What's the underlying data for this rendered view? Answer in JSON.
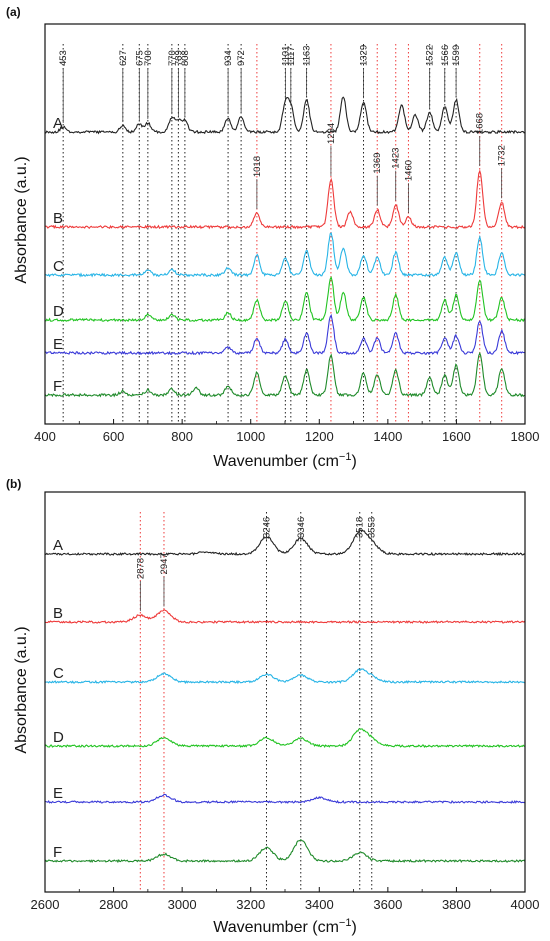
{
  "chart_data": [
    {
      "panel": "(a)",
      "type": "line",
      "xlabel": "Wavenumber (cm−1)",
      "ylabel": "Absorbance (a.u.)",
      "xlim": [
        400,
        1800
      ],
      "x_ticks": [
        "400",
        "600",
        "800",
        "1000",
        "1200",
        "1400",
        "1600",
        "1800"
      ],
      "series": [
        {
          "name": "A",
          "color": "#222222",
          "peaks": [
            [
              453,
              0.1
            ],
            [
              627,
              0.12
            ],
            [
              675,
              0.16
            ],
            [
              700,
              0.18
            ],
            [
              770,
              0.28
            ],
            [
              789,
              0.22
            ],
            [
              808,
              0.22
            ],
            [
              934,
              0.28
            ],
            [
              972,
              0.3
            ],
            [
              1101,
              0.55
            ],
            [
              1117,
              0.5
            ],
            [
              1163,
              0.65
            ],
            [
              1270,
              0.7
            ],
            [
              1329,
              0.6
            ],
            [
              1440,
              0.55
            ],
            [
              1480,
              0.35
            ],
            [
              1522,
              0.4
            ],
            [
              1566,
              0.52
            ],
            [
              1599,
              0.65
            ]
          ]
        },
        {
          "name": "B",
          "color": "#ee3a3a",
          "peaks": [
            [
              1018,
              0.28
            ],
            [
              1234,
              0.95
            ],
            [
              1290,
              0.3
            ],
            [
              1369,
              0.35
            ],
            [
              1423,
              0.45
            ],
            [
              1460,
              0.2
            ],
            [
              1668,
              1.15
            ],
            [
              1732,
              0.5
            ]
          ]
        },
        {
          "name": "C",
          "color": "#27b4e6",
          "peaks": [
            [
              700,
              0.1
            ],
            [
              770,
              0.12
            ],
            [
              934,
              0.15
            ],
            [
              1018,
              0.4
            ],
            [
              1101,
              0.35
            ],
            [
              1163,
              0.5
            ],
            [
              1234,
              0.85
            ],
            [
              1270,
              0.55
            ],
            [
              1329,
              0.4
            ],
            [
              1369,
              0.35
            ],
            [
              1423,
              0.45
            ],
            [
              1566,
              0.35
            ],
            [
              1599,
              0.45
            ],
            [
              1668,
              0.75
            ],
            [
              1732,
              0.45
            ]
          ]
        },
        {
          "name": "D",
          "color": "#22c322",
          "peaks": [
            [
              700,
              0.1
            ],
            [
              770,
              0.12
            ],
            [
              934,
              0.15
            ],
            [
              1018,
              0.4
            ],
            [
              1101,
              0.4
            ],
            [
              1163,
              0.55
            ],
            [
              1234,
              0.85
            ],
            [
              1270,
              0.55
            ],
            [
              1329,
              0.45
            ],
            [
              1423,
              0.5
            ],
            [
              1566,
              0.4
            ],
            [
              1599,
              0.5
            ],
            [
              1668,
              0.8
            ],
            [
              1732,
              0.45
            ]
          ]
        },
        {
          "name": "E",
          "color": "#3a3ad8",
          "peaks": [
            [
              934,
              0.12
            ],
            [
              1018,
              0.3
            ],
            [
              1101,
              0.28
            ],
            [
              1163,
              0.4
            ],
            [
              1234,
              0.75
            ],
            [
              1329,
              0.3
            ],
            [
              1369,
              0.3
            ],
            [
              1423,
              0.4
            ],
            [
              1566,
              0.3
            ],
            [
              1599,
              0.35
            ],
            [
              1668,
              0.65
            ],
            [
              1732,
              0.45
            ]
          ]
        },
        {
          "name": "F",
          "color": "#1f8a2a",
          "peaks": [
            [
              627,
              0.08
            ],
            [
              700,
              0.1
            ],
            [
              770,
              0.12
            ],
            [
              840,
              0.15
            ],
            [
              934,
              0.18
            ],
            [
              1018,
              0.45
            ],
            [
              1101,
              0.4
            ],
            [
              1163,
              0.5
            ],
            [
              1234,
              0.8
            ],
            [
              1329,
              0.45
            ],
            [
              1369,
              0.4
            ],
            [
              1423,
              0.5
            ],
            [
              1522,
              0.35
            ],
            [
              1566,
              0.4
            ],
            [
              1599,
              0.6
            ],
            [
              1668,
              0.85
            ],
            [
              1732,
              0.55
            ]
          ]
        }
      ],
      "annotations": [
        {
          "label": "453",
          "x": 453,
          "series": "A"
        },
        {
          "label": "627",
          "x": 627,
          "series": "A"
        },
        {
          "label": "675",
          "x": 675,
          "series": "A"
        },
        {
          "label": "700",
          "x": 700,
          "series": "A"
        },
        {
          "label": "770",
          "x": 770,
          "series": "A"
        },
        {
          "label": "789",
          "x": 789,
          "series": "A"
        },
        {
          "label": "808",
          "x": 808,
          "series": "A"
        },
        {
          "label": "934",
          "x": 934,
          "series": "A"
        },
        {
          "label": "972",
          "x": 972,
          "series": "A"
        },
        {
          "label": "1101",
          "x": 1101,
          "series": "A"
        },
        {
          "label": "1117",
          "x": 1117,
          "series": "A"
        },
        {
          "label": "1163",
          "x": 1163,
          "series": "A"
        },
        {
          "label": "1329",
          "x": 1329,
          "series": "A"
        },
        {
          "label": "1522",
          "x": 1522,
          "series": "A"
        },
        {
          "label": "1566",
          "x": 1566,
          "series": "A"
        },
        {
          "label": "1599",
          "x": 1599,
          "series": "A"
        },
        {
          "label": "1018",
          "x": 1018,
          "series": "B"
        },
        {
          "label": "1234",
          "x": 1234,
          "series": "B"
        },
        {
          "label": "1369",
          "x": 1369,
          "series": "B"
        },
        {
          "label": "1423",
          "x": 1423,
          "series": "B"
        },
        {
          "label": "1460",
          "x": 1460,
          "series": "B"
        },
        {
          "label": "1668",
          "x": 1668,
          "series": "B"
        },
        {
          "label": "1732",
          "x": 1732,
          "series": "B"
        }
      ],
      "dotted_lines": [
        {
          "x": 453,
          "color": "#222222"
        },
        {
          "x": 627,
          "color": "#222222"
        },
        {
          "x": 675,
          "color": "#222222"
        },
        {
          "x": 700,
          "color": "#222222"
        },
        {
          "x": 770,
          "color": "#222222"
        },
        {
          "x": 789,
          "color": "#222222"
        },
        {
          "x": 808,
          "color": "#222222"
        },
        {
          "x": 934,
          "color": "#222222"
        },
        {
          "x": 972,
          "color": "#222222"
        },
        {
          "x": 1018,
          "color": "#ee3a3a"
        },
        {
          "x": 1101,
          "color": "#222222"
        },
        {
          "x": 1117,
          "color": "#222222"
        },
        {
          "x": 1163,
          "color": "#222222"
        },
        {
          "x": 1234,
          "color": "#ee3a3a"
        },
        {
          "x": 1329,
          "color": "#222222"
        },
        {
          "x": 1369,
          "color": "#ee3a3a"
        },
        {
          "x": 1423,
          "color": "#ee3a3a"
        },
        {
          "x": 1460,
          "color": "#ee3a3a"
        },
        {
          "x": 1522,
          "color": "#222222"
        },
        {
          "x": 1566,
          "color": "#222222"
        },
        {
          "x": 1599,
          "color": "#222222"
        },
        {
          "x": 1668,
          "color": "#ee3a3a"
        },
        {
          "x": 1732,
          "color": "#ee3a3a"
        }
      ]
    },
    {
      "panel": "(b)",
      "type": "line",
      "xlabel": "Wavenumber (cm−1)",
      "ylabel": "Absorbance (a.u.)",
      "xlim": [
        2600,
        4000
      ],
      "x_ticks": [
        "2600",
        "2800",
        "3000",
        "3200",
        "3400",
        "3600",
        "3800",
        "4000"
      ],
      "series": [
        {
          "name": "A",
          "color": "#222222",
          "peaks": [
            [
              3246,
              0.45
            ],
            [
              3346,
              0.4
            ],
            [
              3518,
              0.55
            ],
            [
              3553,
              0.25
            ],
            [
              3070,
              0.05
            ]
          ]
        },
        {
          "name": "B",
          "color": "#ee3a3a",
          "peaks": [
            [
              2878,
              0.18
            ],
            [
              2947,
              0.3
            ]
          ]
        },
        {
          "name": "C",
          "color": "#27b4e6",
          "peaks": [
            [
              2947,
              0.22
            ],
            [
              3246,
              0.2
            ],
            [
              3346,
              0.18
            ],
            [
              3518,
              0.3
            ],
            [
              3553,
              0.12
            ]
          ]
        },
        {
          "name": "D",
          "color": "#22c322",
          "peaks": [
            [
              2947,
              0.22
            ],
            [
              3246,
              0.22
            ],
            [
              3346,
              0.2
            ],
            [
              3518,
              0.4
            ],
            [
              3553,
              0.15
            ]
          ]
        },
        {
          "name": "E",
          "color": "#3a3ad8",
          "peaks": [
            [
              2947,
              0.18
            ],
            [
              3400,
              0.12
            ]
          ]
        },
        {
          "name": "F",
          "color": "#1f8a2a",
          "peaks": [
            [
              2947,
              0.18
            ],
            [
              3246,
              0.35
            ],
            [
              3346,
              0.55
            ],
            [
              3518,
              0.22
            ]
          ]
        }
      ],
      "annotations": [
        {
          "label": "2878",
          "x": 2878,
          "series": "B"
        },
        {
          "label": "2947",
          "x": 2947,
          "series": "B"
        },
        {
          "label": "3246",
          "x": 3246,
          "series": "A"
        },
        {
          "label": "3346",
          "x": 3346,
          "series": "A"
        },
        {
          "label": "3518",
          "x": 3518,
          "series": "A"
        },
        {
          "label": "3553",
          "x": 3553,
          "series": "A"
        }
      ],
      "dotted_lines": [
        {
          "x": 2878,
          "color": "#ee3a3a"
        },
        {
          "x": 2947,
          "color": "#ee3a3a"
        },
        {
          "x": 3246,
          "color": "#222222"
        },
        {
          "x": 3346,
          "color": "#222222"
        },
        {
          "x": 3518,
          "color": "#222222"
        },
        {
          "x": 3553,
          "color": "#222222"
        }
      ]
    }
  ]
}
